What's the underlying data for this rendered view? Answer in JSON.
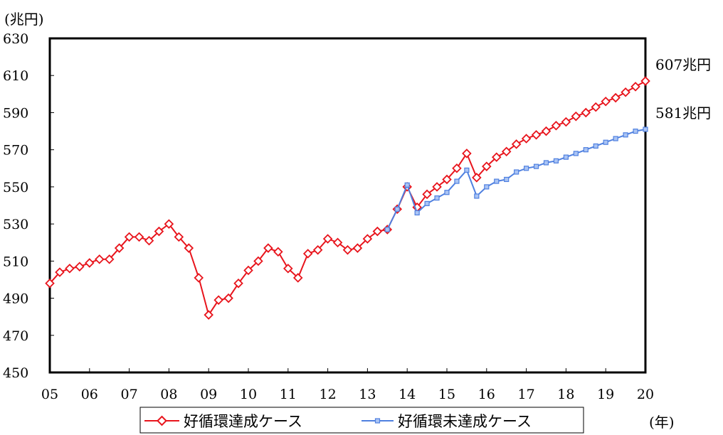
{
  "chart_data": {
    "type": "line",
    "title": "",
    "ylabel": "(兆円)",
    "xlabel": "(年)",
    "ylim": [
      450,
      630
    ],
    "yticks": [
      "450",
      "470",
      "490",
      "510",
      "530",
      "550",
      "570",
      "590",
      "610",
      "630"
    ],
    "xticks": [
      "05",
      "06",
      "07",
      "08",
      "09",
      "10",
      "11",
      "12",
      "13",
      "14",
      "15",
      "16",
      "17",
      "18",
      "19",
      "20"
    ],
    "grid": false,
    "legend_position": "bottom",
    "series": [
      {
        "name": "好循環達成ケース",
        "color": "#e8141c",
        "marker": "diamond",
        "end_label": "607兆円",
        "points": [
          [
            "05",
            498
          ],
          [
            "05Q2",
            504
          ],
          [
            "05Q3",
            506
          ],
          [
            "05Q4",
            507
          ],
          [
            "06",
            509
          ],
          [
            "06Q2",
            511
          ],
          [
            "06Q3",
            511
          ],
          [
            "06Q4",
            517
          ],
          [
            "07",
            523
          ],
          [
            "07Q2",
            523
          ],
          [
            "07Q3",
            521
          ],
          [
            "07Q4",
            526
          ],
          [
            "08",
            530
          ],
          [
            "08Q2",
            523
          ],
          [
            "08Q3",
            517
          ],
          [
            "08Q4",
            501
          ],
          [
            "09",
            481
          ],
          [
            "09Q2",
            489
          ],
          [
            "09Q3",
            490
          ],
          [
            "09Q4",
            498
          ],
          [
            "10",
            505
          ],
          [
            "10Q2",
            510
          ],
          [
            "10Q3",
            517
          ],
          [
            "10Q4",
            515
          ],
          [
            "11",
            506
          ],
          [
            "11Q2",
            501
          ],
          [
            "11Q3",
            514
          ],
          [
            "11Q4",
            516
          ],
          [
            "12",
            522
          ],
          [
            "12Q2",
            520
          ],
          [
            "12Q3",
            516
          ],
          [
            "12Q4",
            517
          ],
          [
            "13",
            522
          ],
          [
            "13Q2",
            526
          ],
          [
            "13Q3",
            527
          ],
          [
            "13Q4",
            538
          ],
          [
            "14",
            550
          ],
          [
            "14Q2",
            539
          ],
          [
            "14Q3",
            546
          ],
          [
            "14Q4",
            550
          ],
          [
            "15",
            554
          ],
          [
            "15Q2",
            560
          ],
          [
            "15Q3",
            568
          ],
          [
            "15Q4",
            555
          ],
          [
            "16",
            561
          ],
          [
            "16Q2",
            566
          ],
          [
            "16Q3",
            569
          ],
          [
            "16Q4",
            573
          ],
          [
            "17",
            576
          ],
          [
            "17Q2",
            578
          ],
          [
            "17Q3",
            580
          ],
          [
            "17Q4",
            583
          ],
          [
            "18",
            585
          ],
          [
            "18Q2",
            588
          ],
          [
            "18Q3",
            590
          ],
          [
            "18Q4",
            593
          ],
          [
            "19",
            596
          ],
          [
            "19Q2",
            598
          ],
          [
            "19Q3",
            601
          ],
          [
            "19Q4",
            604
          ],
          [
            "20",
            607
          ]
        ]
      },
      {
        "name": "好循環未達成ケース",
        "color": "#4f80e0",
        "marker": "square",
        "end_label": "581兆円",
        "points": [
          [
            "13Q3",
            527
          ],
          [
            "13Q4",
            538
          ],
          [
            "14",
            551
          ],
          [
            "14Q2",
            536
          ],
          [
            "14Q3",
            541
          ],
          [
            "14Q4",
            544
          ],
          [
            "15",
            547
          ],
          [
            "15Q2",
            553
          ],
          [
            "15Q3",
            559
          ],
          [
            "15Q4",
            545
          ],
          [
            "16",
            550
          ],
          [
            "16Q2",
            553
          ],
          [
            "16Q3",
            554
          ],
          [
            "16Q4",
            558
          ],
          [
            "17",
            560
          ],
          [
            "17Q2",
            561
          ],
          [
            "17Q3",
            563
          ],
          [
            "17Q4",
            564
          ],
          [
            "18",
            566
          ],
          [
            "18Q2",
            568
          ],
          [
            "18Q3",
            570
          ],
          [
            "18Q4",
            572
          ],
          [
            "19",
            574
          ],
          [
            "19Q2",
            576
          ],
          [
            "19Q3",
            578
          ],
          [
            "19Q4",
            580
          ],
          [
            "20",
            581
          ]
        ]
      }
    ]
  }
}
